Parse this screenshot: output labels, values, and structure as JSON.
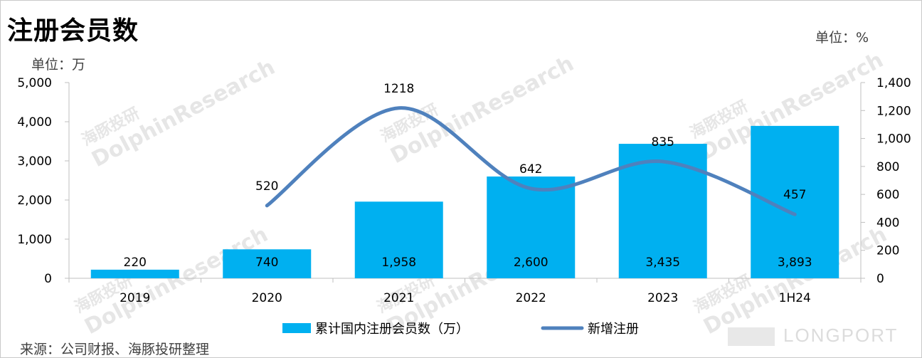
{
  "header": {
    "title": "注册会员数",
    "unit_left": "单位：万",
    "unit_right": "单位：%"
  },
  "footer": {
    "source": "来源：公司财报、海豚投研整理"
  },
  "watermark": {
    "cn": "海豚投研",
    "en": "DolphinResearch",
    "brand": "LONGPORT"
  },
  "colors": {
    "bar": "#00b0f0",
    "line": "#4f81bd",
    "axis": "#bfbfbf"
  },
  "chart_data": {
    "type": "bar",
    "categories": [
      "2019",
      "2020",
      "2021",
      "2022",
      "2023",
      "1H24"
    ],
    "y_left": {
      "min": 0,
      "max": 5000,
      "step": 1000,
      "ticks": [
        "0",
        "1,000",
        "2,000",
        "3,000",
        "4,000",
        "5,000"
      ]
    },
    "y_right": {
      "min": 0,
      "max": 1400,
      "step": 200,
      "ticks": [
        "0",
        "200",
        "400",
        "600",
        "800",
        "1,000",
        "1,200",
        "1,400"
      ]
    },
    "series": [
      {
        "name": "累计国内注册会员数（万）",
        "type": "bar",
        "axis": "left",
        "values": [
          220,
          740,
          1958,
          2600,
          3435,
          3893
        ],
        "labels": [
          "220",
          "740",
          "1,958",
          "2,600",
          "3,435",
          "3,893"
        ]
      },
      {
        "name": "新增注册",
        "type": "line",
        "smooth": true,
        "axis": "right",
        "values": [
          null,
          520,
          1218,
          642,
          835,
          457
        ],
        "labels": [
          null,
          "520",
          "1218",
          "642",
          "835",
          "457"
        ]
      }
    ],
    "legend": "bottom-center",
    "grid": false
  }
}
